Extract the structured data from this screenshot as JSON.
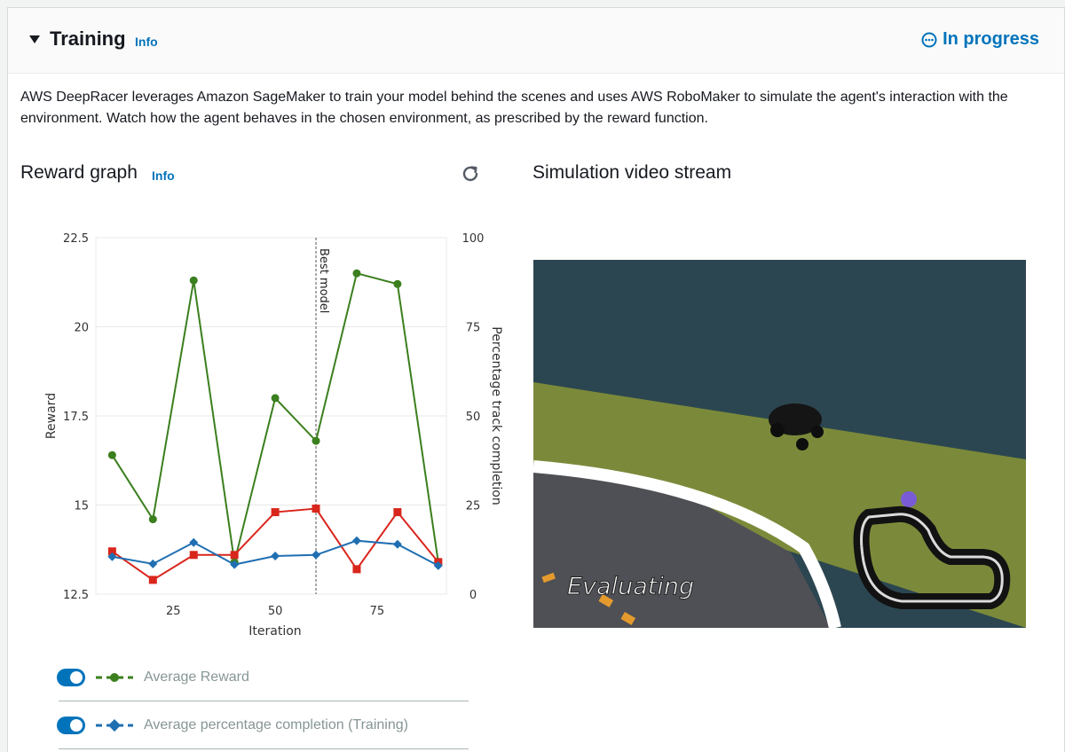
{
  "header": {
    "title": "Training",
    "info_label": "Info",
    "status": "In progress",
    "status_icon": "ellipsis-circle-icon"
  },
  "description": "AWS DeepRacer leverages Amazon SageMaker to train your model behind the scenes and uses AWS RoboMaker to simulate the agent's interaction with the environment. Watch how the agent behaves in the chosen environment, as prescribed by the reward function.",
  "reward_graph": {
    "heading": "Reward graph",
    "info_label": "Info",
    "refresh_icon": "refresh-icon"
  },
  "simulation": {
    "heading": "Simulation video stream",
    "overlay_text": "Evaluating"
  },
  "legend": {
    "items": [
      {
        "label": "Average Reward",
        "color": "#3b7f1e",
        "marker": "circle",
        "enabled": true
      },
      {
        "label": "Average percentage completion (Training)",
        "color": "#1f6fb2",
        "marker": "diamond",
        "enabled": true
      }
    ]
  },
  "chart_data": {
    "type": "line",
    "xlabel": "Iteration",
    "ylabel": "Reward",
    "y2label": "Percentage track completion",
    "xlim": [
      6,
      92
    ],
    "ylim": [
      12.5,
      22.5
    ],
    "y2lim": [
      0,
      100
    ],
    "x_ticks": [
      25,
      50,
      75
    ],
    "y_ticks": [
      12.5,
      15,
      17.5,
      20,
      22.5
    ],
    "y_tick_labels": [
      "12.5",
      "15",
      "17.5",
      "20",
      "22.5"
    ],
    "y2_ticks": [
      0,
      25,
      50,
      75,
      100
    ],
    "best_model_x": 60,
    "best_model_label": "Best model",
    "grid": true,
    "series": [
      {
        "name": "Average Reward",
        "axis": "left",
        "color": "#3b7f1e",
        "marker": "circle",
        "x": [
          10,
          20,
          30,
          40,
          50,
          60,
          70,
          80,
          90
        ],
        "values": [
          16.4,
          14.6,
          21.3,
          13.4,
          18.0,
          16.8,
          21.5,
          21.2,
          13.4
        ]
      },
      {
        "axis": "left",
        "color": "#d9261c",
        "marker": "square",
        "x": [
          10,
          20,
          30,
          40,
          50,
          60,
          70,
          80,
          90
        ],
        "values": [
          13.7,
          12.9,
          13.6,
          13.6,
          14.8,
          14.9,
          13.2,
          14.8,
          13.4
        ]
      },
      {
        "name": "Average percentage completion (Training)",
        "axis": "right",
        "color": "#1f6fb2",
        "marker": "diamond",
        "x": [
          10,
          20,
          30,
          40,
          50,
          60,
          70,
          80,
          90
        ],
        "values": [
          10.5,
          8.5,
          14.5,
          8.3,
          10.7,
          11.0,
          15.0,
          14.0,
          8.0
        ]
      }
    ]
  }
}
